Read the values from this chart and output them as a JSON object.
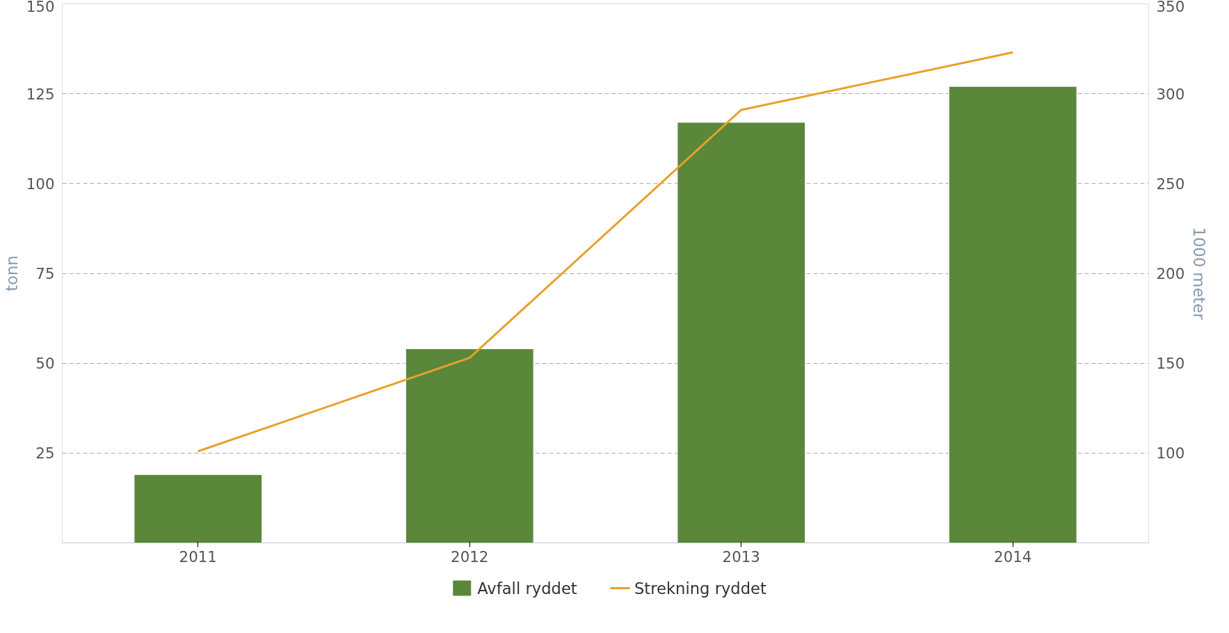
{
  "chart_data": {
    "type": "bar",
    "categories": [
      "2011",
      "2012",
      "2013",
      "2014"
    ],
    "ylabel": "tonn",
    "y2label": "1000 meter",
    "ylim": [
      0,
      150
    ],
    "yticks": [
      25,
      50,
      75,
      100,
      125,
      150
    ],
    "y2lim": [
      50,
      350
    ],
    "y2ticks": [
      100,
      150,
      200,
      250,
      300,
      350
    ],
    "grid": "y",
    "legend": "bottom",
    "series": [
      {
        "name": "Avfall ryddet",
        "color": "#5a873a",
        "values": [
          19,
          54,
          117,
          127
        ]
      },
      {
        "name": "Strekning ryddet",
        "type": "line",
        "axis": "y2",
        "color": "#e8a02a",
        "values": [
          101,
          153,
          291,
          323
        ]
      }
    ]
  }
}
